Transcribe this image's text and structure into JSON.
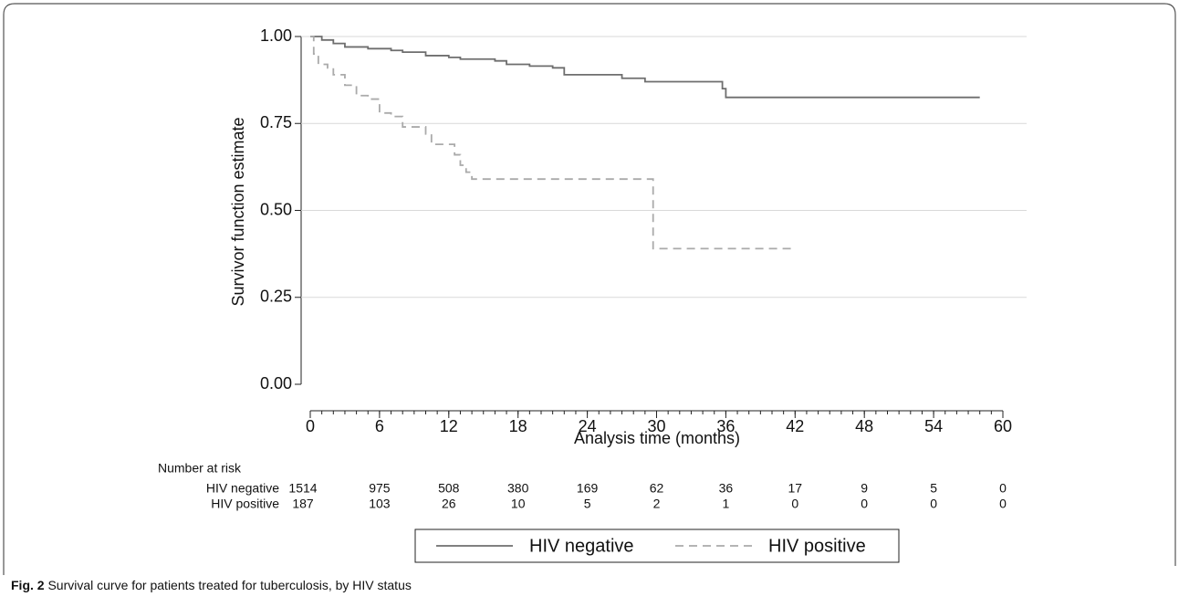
{
  "chart_data": {
    "type": "step",
    "ylabel": "Survivor function estimate",
    "xlabel": "Analysis time (months)",
    "xlim": [
      0,
      60
    ],
    "xticks": [
      0,
      6,
      12,
      18,
      24,
      30,
      36,
      42,
      48,
      54,
      60
    ],
    "ylim": [
      0,
      1
    ],
    "yticks": [
      {
        "value": 0,
        "label": "0.00"
      },
      {
        "value": 0.25,
        "label": "0.25"
      },
      {
        "value": 0.5,
        "label": "0.50"
      },
      {
        "value": 0.75,
        "label": "0.75"
      },
      {
        "value": 1,
        "label": "1.00"
      }
    ],
    "grid": true,
    "series": [
      {
        "name": "HIV negative",
        "color": "#6e6e6e",
        "style": "solid",
        "x": [
          0,
          1,
          2,
          3,
          5,
          7,
          8,
          10,
          12,
          13,
          16,
          17,
          19,
          21,
          22,
          27,
          29,
          35.7,
          36,
          58
        ],
        "values": [
          1.0,
          0.99,
          0.98,
          0.97,
          0.965,
          0.96,
          0.955,
          0.945,
          0.94,
          0.935,
          0.93,
          0.92,
          0.915,
          0.91,
          0.89,
          0.88,
          0.87,
          0.85,
          0.825,
          0.825
        ]
      },
      {
        "name": "HIV positive",
        "color": "#aaaaaa",
        "style": "dashed",
        "x": [
          0,
          0.3,
          0.7,
          1.5,
          2,
          3,
          4,
          5,
          6,
          7,
          8,
          10,
          10.5,
          12.5,
          13,
          13.5,
          14,
          29.7,
          42
        ],
        "values": [
          1.0,
          0.95,
          0.92,
          0.91,
          0.89,
          0.86,
          0.83,
          0.82,
          0.78,
          0.77,
          0.74,
          0.72,
          0.69,
          0.66,
          0.63,
          0.61,
          0.59,
          0.39,
          0.39
        ]
      }
    ],
    "risk_table": {
      "title": "Number at risk",
      "rows": [
        {
          "label": "HIV negative",
          "values": [
            1514,
            975,
            508,
            380,
            169,
            62,
            36,
            17,
            9,
            5,
            0
          ]
        },
        {
          "label": "HIV positive",
          "values": [
            187,
            103,
            26,
            10,
            5,
            2,
            1,
            0,
            0,
            0,
            0
          ]
        }
      ]
    },
    "caption": {
      "label": "Fig. 2",
      "text": "Survival curve for patients treated for tuberculosis, by HIV status"
    }
  }
}
